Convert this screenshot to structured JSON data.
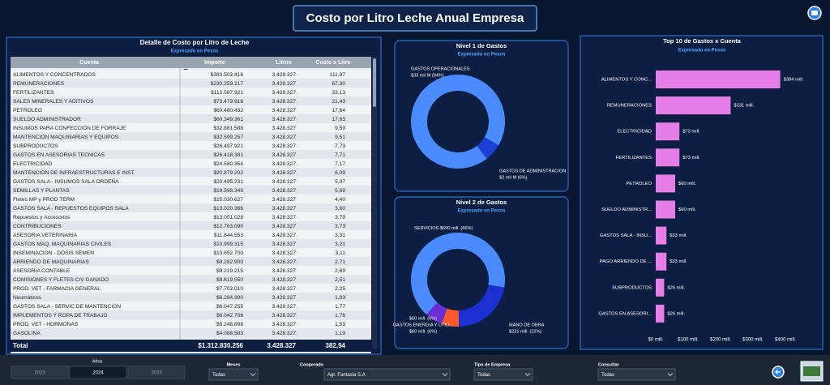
{
  "header": {
    "title": "Costo por Litro Leche Anual Empresa"
  },
  "table": {
    "title": "Detalle de Costo por Litro de Leche",
    "subtitle": "Expresado en Pesos",
    "columns": [
      "Cuenta",
      "Importe",
      "Litros",
      "Costo x Litro"
    ],
    "rows": [
      [
        "ALIMENTOS Y CONCENTRADOS",
        "$383.503.416",
        "3.428.327",
        "111,97"
      ],
      [
        "REMUNERACIONES",
        "$230.259.217",
        "3.428.327",
        "67,30"
      ],
      [
        "FERTILIZANTES",
        "$113.587.921",
        "3.428.327",
        "33,13"
      ],
      [
        "SALES MINERALES Y ADITIVOS",
        "$73.479.916",
        "3.428.327",
        "21,43"
      ],
      [
        "PETROLEO",
        "$60.480.432",
        "3.428.327",
        "17,64"
      ],
      [
        "SUELDO ADMINISTRADOR",
        "$60.349.361",
        "3.428.327",
        "17,63"
      ],
      [
        "INSUMOS PARA CONFECCION DE FORRAJE",
        "$32.881.588",
        "3.428.327",
        "9,59"
      ],
      [
        "MANTENCION MAQUINARIAS Y EQUIPOS",
        "$32.599.257",
        "3.428.327",
        "9,51"
      ],
      [
        "SUBPRODUCTOS",
        "$26.497.921",
        "3.428.327",
        "7,73"
      ],
      [
        "GASTOS EN ASESORIAS TECNICAS",
        "$26.418.381",
        "3.428.327",
        "7,71"
      ],
      [
        "ELECTRICIDAD",
        "$24.580.354",
        "3.428.327",
        "7,17"
      ],
      [
        "MANTENCION DE INFRAESTRUCTURAS E INST.",
        "$20.879.202",
        "3.428.327",
        "6,09"
      ],
      [
        "GASTOS SALA - INSUMOS SALA ORDEÑA",
        "$20.495.231",
        "3.428.327",
        "5,97"
      ],
      [
        "SEMILLAS Y PLANTAS",
        "$19.598.349",
        "3.428.327",
        "5,69"
      ],
      [
        "Fletes MP y PROD TERM",
        "$15.030.627",
        "3.428.327",
        "4,40"
      ],
      [
        "GASTOS SALA - REPUESTOS EQUIPOS SALA",
        "$13.020.366",
        "3.428.327",
        "3,80"
      ],
      [
        "Repuestos y Accesorios",
        "$13.001.028",
        "3.428.327",
        "3,79"
      ],
      [
        "CONTRIBUCIONES",
        "$12.763.090",
        "3.428.327",
        "3,73"
      ],
      [
        "ASESORIA VETERINARIA",
        "$11.844.553",
        "3.428.327",
        "3,31"
      ],
      [
        "GASTOS MAQ. MAQUINARIAS CIVILES",
        "$10.999.315",
        "3.428.327",
        "3,21"
      ],
      [
        "INSEMINACION - DOSIS SEMEN",
        "$10.652.700",
        "3.428.327",
        "3,11"
      ],
      [
        "ARRIENDO DE MAQUINARIAS",
        "$9.282.900",
        "3.428.327",
        "2,71"
      ],
      [
        "ASESORIA CONTABLE",
        "$9.219.215",
        "3.428.327",
        "2,69"
      ],
      [
        "COMISIONES Y FLETES C/V GANADO",
        "$8.619.550",
        "3.428.327",
        "2,51"
      ],
      [
        "PROD. VET - FARMACIA GENERAL",
        "$7.703.010",
        "3.428.327",
        "2,25"
      ],
      [
        "Neumáticos",
        "$6.284.390",
        "3.428.327",
        "1,83"
      ],
      [
        "GASTOS SALA - SERVIC DE MANTENCIÓN",
        "$6.047.255",
        "3.428.327",
        "1,77"
      ],
      [
        "IMPLEMENTOS Y ROPA DE TRABAJO",
        "$6.042.706",
        "3.428.327",
        "1,76"
      ],
      [
        "PROD. VET - HORMONAS",
        "$5.248.898",
        "3.428.327",
        "1,53"
      ],
      [
        "GASOLINA",
        "$4.088.583",
        "3.428.327",
        "1,19"
      ]
    ],
    "total": [
      "Total",
      "$1.312.830.256",
      "3.428.327",
      "382,94"
    ]
  },
  "chart_data": [
    {
      "type": "donut",
      "title": "Nivel 1 de Gastos",
      "subtitle": "Expresado en Pesos",
      "categories": [
        "GASTOS OPERACIONALES",
        "GASTOS DE ADMINISTRACION"
      ],
      "values": [
        94,
        6
      ],
      "value_labels": [
        "$33 mil M (94%)",
        "$2 mil M (6%)"
      ],
      "colors": [
        "#4a8bff",
        "#1c3fd8"
      ]
    },
    {
      "type": "donut",
      "title": "Nivel 2 de Gastos",
      "subtitle": "Expresado en Pesos",
      "categories": [
        "SERVICIOS",
        "MANO DE OBRA",
        "GASTOS ENERGIA Y UTILI...",
        null
      ],
      "values": [
        66,
        22,
        6,
        6
      ],
      "value_labels": [
        "$690 mill. (66%)",
        "$231 mill. (22%)",
        "$60 mill. (6%)",
        "$60 mill. (6%)"
      ],
      "colors": [
        "#4a8bff",
        "#1c2fd0",
        "#ff5a2a",
        "#6a2ed4"
      ]
    },
    {
      "type": "bar",
      "orientation": "horizontal",
      "title": "Top 10 de Gastos x Cuenta",
      "subtitle": "Expresado en Pesos",
      "categories": [
        "ALIMENTOS Y CONC...",
        "REMUNERACIONES",
        "ELECTRICIDAD",
        "FERTILIZANTES",
        "PETROLEO",
        "SUELDO ADMINISTR...",
        "GASTOS SALA - INSU...",
        "PAGO ARRIENDO DE ...",
        "SUBPRODUCTOS",
        "GASTOS EN ASESORI..."
      ],
      "values": [
        384,
        231,
        73,
        73,
        60,
        60,
        33,
        33,
        26,
        26
      ],
      "value_labels": [
        "$384 mill.",
        "$231 mill.",
        "$73 mill.",
        "$73 mill.",
        "$60 mill.",
        "$60 mill.",
        "$33 mill.",
        "$33 mill.",
        "$26 mill.",
        "$26 mill."
      ],
      "color": "#e77de6",
      "xlim": [
        0,
        420
      ],
      "xticks": [
        {
          "value": 0,
          "label": "$0 mill."
        },
        {
          "value": 100,
          "label": "$100 mill."
        },
        {
          "value": 200,
          "label": "$200 mill."
        },
        {
          "value": 300,
          "label": "$300 mill."
        },
        {
          "value": 400,
          "label": "$400 mill."
        }
      ]
    }
  ],
  "filters": {
    "years": {
      "label": "Años",
      "options": [
        "2023",
        "2024",
        "2025"
      ],
      "selected_index": 1
    },
    "dropdowns": [
      {
        "label": "Meses",
        "value": "Todas"
      },
      {
        "label": "Cooperado",
        "value": "Agr. Fantasia S.A"
      },
      {
        "label": "Tipo de Empresa",
        "value": "Todas"
      },
      {
        "label": "Consultar",
        "value": "Todas"
      }
    ]
  }
}
